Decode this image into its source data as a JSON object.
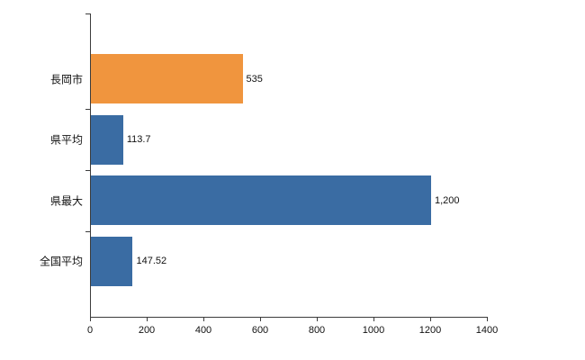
{
  "chart_data": {
    "type": "bar",
    "orientation": "horizontal",
    "title": "",
    "categories": [
      "長岡市",
      "県平均",
      "県最大",
      "全国平均"
    ],
    "values": [
      535,
      113.7,
      1200,
      147.52
    ],
    "value_labels": [
      "535",
      "113.7",
      "1,200",
      "147.52"
    ],
    "bar_colors": [
      "#f0953e",
      "#3a6ca3",
      "#3a6ca3",
      "#3a6ca3"
    ],
    "xlim": [
      0,
      1400
    ],
    "x_ticks": [
      0,
      200,
      400,
      600,
      800,
      1000,
      1200,
      1400
    ],
    "x_tick_labels": [
      "0",
      "200",
      "400",
      "600",
      "800",
      "1000",
      "1200",
      "1400"
    ],
    "grid": false,
    "legend": "none",
    "axis_color": "#3c3c3c",
    "background_color": "#ffffff"
  }
}
